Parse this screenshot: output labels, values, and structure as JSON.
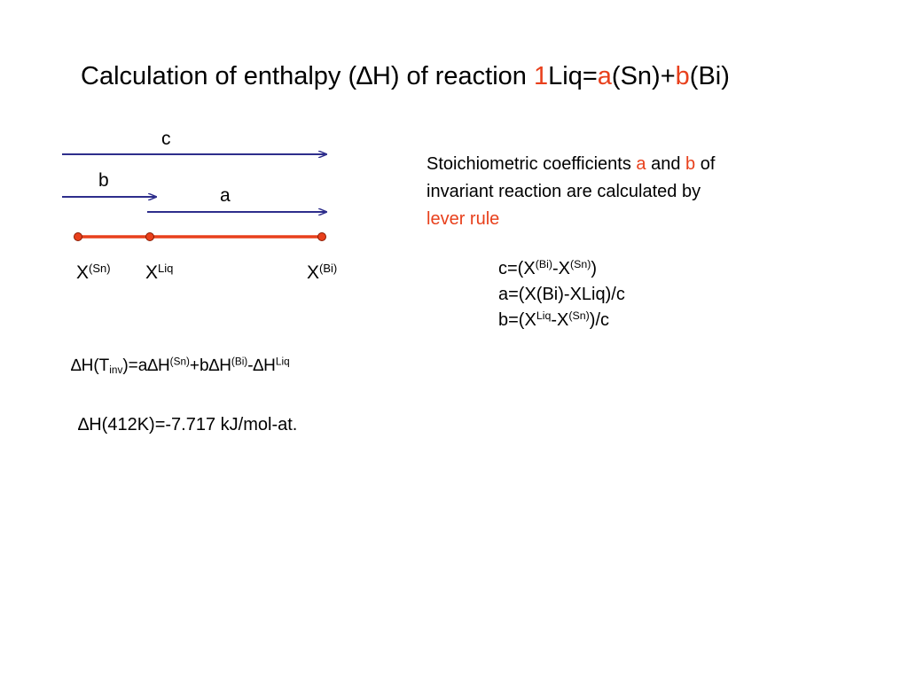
{
  "title": [
    "Calculation of enthalpy (∆H) of reaction ",
    "1",
    "Liq=",
    "a",
    "(Sn)+",
    "b",
    "(Bi)"
  ],
  "diagram": {
    "arrow_labels": [
      "c",
      "b",
      "a"
    ],
    "points": [
      [
        "X",
        "(Sn)"
      ],
      [
        "X",
        "Liq"
      ],
      [
        "X",
        "(Bi)"
      ]
    ]
  },
  "description": {
    "lines": [
      [
        "Stoichiometric coefficients ",
        "a",
        " and ",
        "b",
        " of"
      ],
      [
        "invariant reaction are calculated by"
      ],
      [
        "lever rule"
      ]
    ]
  },
  "lever_formulas": [
    [
      "c=(X",
      "(Bi)",
      "-X",
      "(Sn)",
      ")"
    ],
    [
      "a=(X(Bi)-XLiq)/c"
    ],
    [
      "b=(X",
      "Liq",
      "-X",
      "(Sn)",
      ")/c"
    ]
  ],
  "enthalpy_formula": [
    "∆H(T",
    "inv",
    ")=a∆H",
    "(Sn)",
    "+b∆H",
    "(Bi)",
    "-∆H",
    "Liq"
  ],
  "result": "∆H(412K)=-7.717 kJ/mol-at."
}
